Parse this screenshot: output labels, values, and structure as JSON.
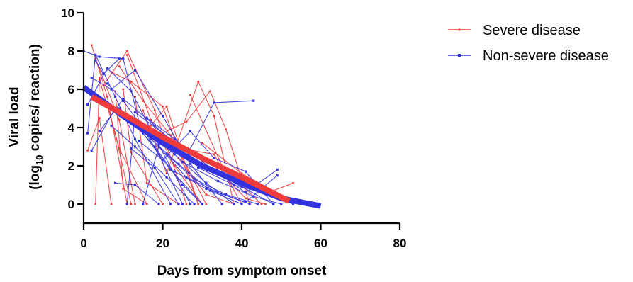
{
  "chart_data": {
    "type": "line",
    "xlabel": "Days from symptom onset",
    "ylabel_line1": "Viral load",
    "ylabel_line2_prefix": "(log",
    "ylabel_line2_sub": "10",
    "ylabel_line2_suffix": " copies/ reaction)",
    "xlim": [
      0,
      80
    ],
    "ylim": [
      -1,
      10
    ],
    "xticks": [
      0,
      20,
      40,
      60,
      80
    ],
    "yticks": [
      0,
      2,
      4,
      6,
      8,
      10
    ],
    "legend_position": "top-right",
    "legend": [
      {
        "label": "Severe disease",
        "color": "#ef3b3b"
      },
      {
        "label": "Non-severe disease",
        "color": "#3333dd"
      }
    ],
    "series": [
      {
        "name": "Severe disease",
        "color": "#ef3b3b",
        "fit": [
          [
            2,
            5.6
          ],
          [
            10,
            4.7
          ],
          [
            20,
            3.5
          ],
          [
            30,
            2.4
          ],
          [
            40,
            1.4
          ],
          [
            52,
            0.15
          ]
        ],
        "patients": [
          [
            [
              2,
              8.3
            ],
            [
              6,
              5.6
            ],
            [
              11,
              0
            ]
          ],
          [
            [
              3,
              7.6
            ],
            [
              9,
              4.4
            ],
            [
              13,
              0
            ]
          ],
          [
            [
              4,
              6.5
            ],
            [
              8,
              3.7
            ],
            [
              12,
              0
            ]
          ],
          [
            [
              5,
              6.2
            ],
            [
              11,
              8.0
            ],
            [
              18,
              4.9
            ],
            [
              26,
              0
            ]
          ],
          [
            [
              6,
              5.2
            ],
            [
              9,
              2.9
            ],
            [
              16,
              0
            ]
          ],
          [
            [
              7,
              6.9
            ],
            [
              12,
              6.4
            ],
            [
              20,
              5.1
            ],
            [
              29,
              0
            ]
          ],
          [
            [
              8,
              5.9
            ],
            [
              10,
              0.8
            ],
            [
              16,
              0
            ]
          ],
          [
            [
              9,
              7.2
            ],
            [
              15,
              5.4
            ],
            [
              22,
              3.6
            ],
            [
              31,
              0
            ]
          ],
          [
            [
              10,
              6.0
            ],
            [
              12,
              2.7
            ],
            [
              20,
              0
            ]
          ],
          [
            [
              11,
              7.8
            ],
            [
              17,
              4.4
            ],
            [
              23,
              2.0
            ],
            [
              30,
              0
            ]
          ],
          [
            [
              13,
              5.6
            ],
            [
              16,
              1.1
            ],
            [
              24,
              0
            ]
          ],
          [
            [
              15,
              4.9
            ],
            [
              21,
              1.6
            ],
            [
              29,
              6.4
            ],
            [
              33,
              4.6
            ],
            [
              38,
              0
            ]
          ],
          [
            [
              17,
              4.1
            ],
            [
              21,
              5.1
            ],
            [
              29,
              0
            ]
          ],
          [
            [
              19,
              3.6
            ],
            [
              26,
              4.3
            ],
            [
              32,
              5.9
            ],
            [
              36,
              3.9
            ],
            [
              42,
              0
            ]
          ],
          [
            [
              22,
              3.0
            ],
            [
              33,
              2.6
            ],
            [
              40,
              0
            ]
          ],
          [
            [
              24,
              2.4
            ],
            [
              31,
              0.5
            ],
            [
              38,
              0
            ]
          ],
          [
            [
              27,
              5.7
            ],
            [
              35,
              2.0
            ],
            [
              45,
              0
            ]
          ],
          [
            [
              30,
              3.2
            ],
            [
              40,
              1.6
            ],
            [
              48,
              0.7
            ],
            [
              53,
              1.1
            ]
          ],
          [
            [
              33,
              2.0
            ],
            [
              41,
              0.3
            ],
            [
              46,
              0
            ]
          ],
          [
            [
              3,
              0
            ],
            [
              4,
              6.6
            ]
          ],
          [
            [
              1,
              2.8
            ],
            [
              4,
              4.5
            ],
            [
              7,
              0
            ]
          ]
        ]
      },
      {
        "name": "Non-severe disease",
        "color": "#3333dd",
        "fit": [
          [
            0,
            6.1
          ],
          [
            10,
            4.6
          ],
          [
            20,
            3.2
          ],
          [
            30,
            2.0
          ],
          [
            40,
            1.1
          ],
          [
            50,
            0.3
          ],
          [
            60,
            -0.1
          ]
        ],
        "patients": [
          [
            [
              0,
              8.0
            ],
            [
              4,
              7.7
            ],
            [
              10,
              7.6
            ],
            [
              14,
              4.3
            ],
            [
              19,
              2.6
            ],
            [
              25,
              0
            ]
          ],
          [
            [
              1,
              3.7
            ],
            [
              3,
              7.8
            ],
            [
              8,
              5.6
            ],
            [
              13,
              3.4
            ],
            [
              22,
              0
            ]
          ],
          [
            [
              1,
              5.2
            ],
            [
              6,
              7.1
            ],
            [
              12,
              5.9
            ],
            [
              19,
              3.1
            ],
            [
              27,
              0
            ]
          ],
          [
            [
              2,
              6.6
            ],
            [
              7,
              6.0
            ],
            [
              13,
              7.0
            ],
            [
              20,
              4.6
            ],
            [
              27,
              2.1
            ],
            [
              35,
              0
            ]
          ],
          [
            [
              2,
              2.8
            ],
            [
              8,
              5.0
            ],
            [
              15,
              3.7
            ],
            [
              22,
              1.8
            ],
            [
              30,
              0
            ]
          ],
          [
            [
              4,
              3.8
            ],
            [
              10,
              5.5
            ],
            [
              18,
              4.1
            ],
            [
              26,
              2.5
            ],
            [
              33,
              5.3
            ],
            [
              43,
              5.4
            ]
          ],
          [
            [
              5,
              5.3
            ],
            [
              11,
              4.6
            ],
            [
              18,
              3.0
            ],
            [
              25,
              1.0
            ],
            [
              30,
              0
            ]
          ],
          [
            [
              6,
              6.3
            ],
            [
              10,
              5.4
            ],
            [
              17,
              3.4
            ],
            [
              24,
              2.1
            ],
            [
              32,
              0.7
            ],
            [
              40,
              0
            ]
          ],
          [
            [
              7,
              4.1
            ],
            [
              13,
              3.0
            ],
            [
              21,
              1.4
            ],
            [
              28,
              0
            ]
          ],
          [
            [
              8,
              1.1
            ],
            [
              13,
              1.0
            ],
            [
              19,
              0
            ]
          ],
          [
            [
              9,
              5.0
            ],
            [
              15,
              4.0
            ],
            [
              23,
              2.6
            ],
            [
              31,
              1.1
            ],
            [
              38,
              0
            ]
          ],
          [
            [
              11,
              0
            ],
            [
              13,
              4.8
            ],
            [
              22,
              3.4
            ],
            [
              30,
              2.0
            ],
            [
              40,
              0.9
            ],
            [
              48,
              0
            ]
          ],
          [
            [
              12,
              2.9
            ],
            [
              18,
              1.9
            ],
            [
              24,
              0
            ]
          ],
          [
            [
              14,
              3.3
            ],
            [
              20,
              2.3
            ],
            [
              27,
              3.8
            ],
            [
              33,
              2.4
            ],
            [
              41,
              1.7
            ],
            [
              48,
              0
            ]
          ],
          [
            [
              15,
              0
            ],
            [
              19,
              3.0
            ],
            [
              26,
              1.4
            ],
            [
              34,
              0.6
            ],
            [
              42,
              0
            ]
          ],
          [
            [
              16,
              4.5
            ],
            [
              23,
              3.4
            ],
            [
              32,
              1.9
            ],
            [
              41,
              0.6
            ],
            [
              49,
              1.8
            ]
          ],
          [
            [
              21,
              2.6
            ],
            [
              28,
              1.3
            ],
            [
              36,
              0.5
            ],
            [
              44,
              0
            ]
          ],
          [
            [
              23,
              1.7
            ],
            [
              31,
              0.8
            ],
            [
              41,
              0.1
            ],
            [
              49,
              1.5
            ]
          ],
          [
            [
              25,
              2.2
            ],
            [
              34,
              1.2
            ],
            [
              43,
              0.4
            ],
            [
              50,
              0
            ]
          ],
          [
            [
              29,
              1.9
            ],
            [
              38,
              1.0
            ],
            [
              47,
              0.5
            ],
            [
              53,
              0
            ]
          ],
          [
            [
              3,
              7.5
            ],
            [
              5,
              6.8
            ],
            [
              9,
              7.6
            ]
          ]
        ]
      }
    ]
  }
}
